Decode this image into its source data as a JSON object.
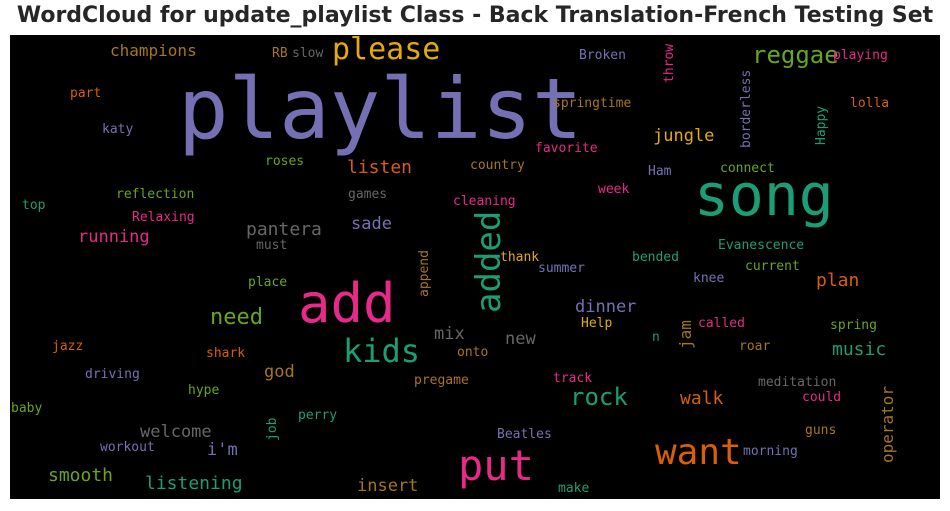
{
  "chart_data": {
    "type": "wordcloud",
    "title": "WordCloud for update_playlist Class - Back Translation-French Testing Set",
    "background": "#000000",
    "words": [
      {
        "text": "playlist",
        "color": "#7570b3"
      },
      {
        "text": "song",
        "color": "#1b9e77"
      },
      {
        "text": "add",
        "color": "#e7298a"
      },
      {
        "text": "put",
        "color": "#e7298a"
      },
      {
        "text": "want",
        "color": "#d95f02"
      },
      {
        "text": "kids",
        "color": "#1b9e77"
      },
      {
        "text": "please",
        "color": "#e6ab02"
      },
      {
        "text": "added",
        "color": "#1b9e77"
      },
      {
        "text": "reggae",
        "color": "#66a61e"
      },
      {
        "text": "rock",
        "color": "#1b9e77"
      },
      {
        "text": "need",
        "color": "#66a61e"
      },
      {
        "text": "champions",
        "color": "#a6761d"
      },
      {
        "text": "jungle",
        "color": "#e6ab02"
      },
      {
        "text": "listen",
        "color": "#d95f02"
      },
      {
        "text": "pantera",
        "color": "#666666"
      },
      {
        "text": "running",
        "color": "#e7298a"
      },
      {
        "text": "sade",
        "color": "#7570b3"
      },
      {
        "text": "dinner",
        "color": "#7570b3"
      },
      {
        "text": "plan",
        "color": "#d95f02"
      },
      {
        "text": "music",
        "color": "#1b9e77"
      },
      {
        "text": "walk",
        "color": "#d95f02"
      },
      {
        "text": "welcome",
        "color": "#666666"
      },
      {
        "text": "smooth",
        "color": "#66a61e"
      },
      {
        "text": "listening",
        "color": "#1b9e77"
      },
      {
        "text": "insert",
        "color": "#a6761d"
      },
      {
        "text": "mix",
        "color": "#666666"
      },
      {
        "text": "new",
        "color": "#666666"
      },
      {
        "text": "god",
        "color": "#a6761d"
      },
      {
        "text": "i'm",
        "color": "#7570b3"
      },
      {
        "text": "operator",
        "color": "#a6761d"
      },
      {
        "text": "jam",
        "color": "#a6761d"
      },
      {
        "text": "Broken",
        "color": "#7570b3"
      },
      {
        "text": "throw",
        "color": "#e7298a"
      },
      {
        "text": "playing",
        "color": "#e7298a"
      },
      {
        "text": "lolla",
        "color": "#d95f02"
      },
      {
        "text": "borderless",
        "color": "#7570b3"
      },
      {
        "text": "Happy",
        "color": "#1b9e77"
      },
      {
        "text": "springtime",
        "color": "#a6761d"
      },
      {
        "text": "favorite",
        "color": "#e7298a"
      },
      {
        "text": "connect",
        "color": "#66a61e"
      },
      {
        "text": "country",
        "color": "#a6761d"
      },
      {
        "text": "Ham",
        "color": "#7570b3"
      },
      {
        "text": "week",
        "color": "#e7298a"
      },
      {
        "text": "cleaning",
        "color": "#e7298a"
      },
      {
        "text": "games",
        "color": "#666666"
      },
      {
        "text": "roses",
        "color": "#66a61e"
      },
      {
        "text": "reflection",
        "color": "#66a61e"
      },
      {
        "text": "top",
        "color": "#1b9e77"
      },
      {
        "text": "Relaxing",
        "color": "#e7298a"
      },
      {
        "text": "must",
        "color": "#666666"
      },
      {
        "text": "katy",
        "color": "#7570b3"
      },
      {
        "text": "part",
        "color": "#d95f02"
      },
      {
        "text": "RB",
        "color": "#a6761d"
      },
      {
        "text": "slow",
        "color": "#666666"
      },
      {
        "text": "thank",
        "color": "#e6ab02"
      },
      {
        "text": "summer",
        "color": "#7570b3"
      },
      {
        "text": "bended",
        "color": "#1b9e77"
      },
      {
        "text": "Evanescence",
        "color": "#1b9e77"
      },
      {
        "text": "current",
        "color": "#66a61e"
      },
      {
        "text": "knee",
        "color": "#7570b3"
      },
      {
        "text": "append",
        "color": "#a6761d"
      },
      {
        "text": "place",
        "color": "#66a61e"
      },
      {
        "text": "Help",
        "color": "#e6ab02"
      },
      {
        "text": "called",
        "color": "#e7298a"
      },
      {
        "text": "spring",
        "color": "#66a61e"
      },
      {
        "text": "n",
        "color": "#1b9e77"
      },
      {
        "text": "roar",
        "color": "#a6761d"
      },
      {
        "text": "onto",
        "color": "#a6761d"
      },
      {
        "text": "jazz",
        "color": "#d95f02"
      },
      {
        "text": "shark",
        "color": "#d95f02"
      },
      {
        "text": "driving",
        "color": "#7570b3"
      },
      {
        "text": "hype",
        "color": "#66a61e"
      },
      {
        "text": "pregame",
        "color": "#a6761d"
      },
      {
        "text": "track",
        "color": "#e7298a"
      },
      {
        "text": "meditation",
        "color": "#666666"
      },
      {
        "text": "could",
        "color": "#e7298a"
      },
      {
        "text": "baby",
        "color": "#66a61e"
      },
      {
        "text": "perry",
        "color": "#1b9e77"
      },
      {
        "text": "job",
        "color": "#1b9e77"
      },
      {
        "text": "guns",
        "color": "#a6761d"
      },
      {
        "text": "workout",
        "color": "#7570b3"
      },
      {
        "text": "Beatles",
        "color": "#7570b3"
      },
      {
        "text": "morning",
        "color": "#7570b3"
      },
      {
        "text": "make",
        "color": "#1b9e77"
      }
    ]
  }
}
